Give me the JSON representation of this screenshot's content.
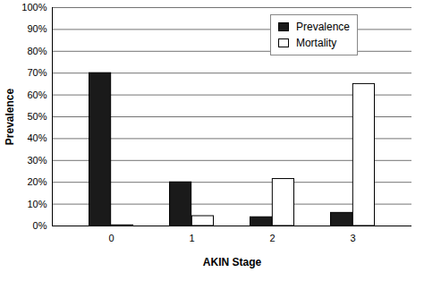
{
  "chart_data": {
    "type": "bar",
    "x_label": "AKIN Stage",
    "y_label": "Prevalence",
    "categories": [
      "0",
      "1",
      "2",
      "3"
    ],
    "series": [
      {
        "name": "Prevalence",
        "color": "#1a1a1a",
        "values": [
          70,
          20,
          4,
          6
        ]
      },
      {
        "name": "Mortality",
        "color": "#ffffff",
        "values": [
          0.3,
          4.5,
          21.5,
          65
        ]
      }
    ],
    "ylim": [
      0,
      100
    ],
    "yticks": [
      {
        "value": 0,
        "label": "0%"
      },
      {
        "value": 10,
        "label": "10%"
      },
      {
        "value": 20,
        "label": "20%"
      },
      {
        "value": 30,
        "label": "30%"
      },
      {
        "value": 40,
        "label": "40%"
      },
      {
        "value": 50,
        "label": "50%"
      },
      {
        "value": 60,
        "label": "60%"
      },
      {
        "value": 70,
        "label": "70%"
      },
      {
        "value": 80,
        "label": "80%"
      },
      {
        "value": 90,
        "label": "90%"
      },
      {
        "value": 100,
        "label": "100%"
      }
    ],
    "grid": true,
    "legend": "top-right"
  }
}
